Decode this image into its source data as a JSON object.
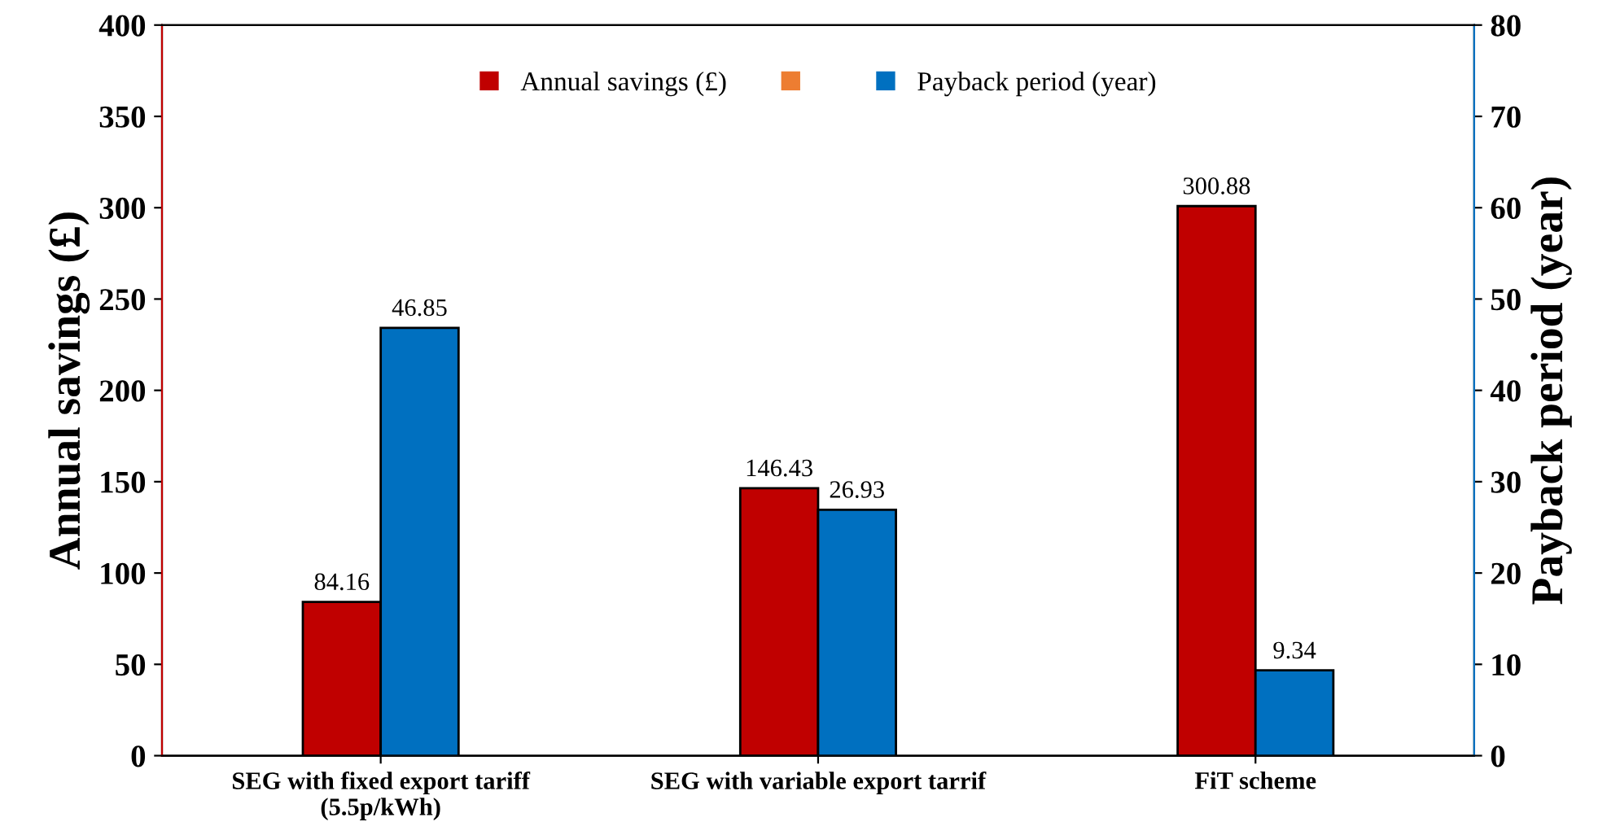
{
  "chart_data": {
    "type": "bar",
    "categories": [
      "SEG with fixed export tariff\n(5.5p/kWh)",
      "SEG with variable export tarrif",
      "FiT scheme"
    ],
    "ylabel": "Annual savings (£)",
    "y2label": "Payback period (year)",
    "ylim": [
      0,
      400
    ],
    "yticks": [
      0,
      50,
      100,
      150,
      200,
      250,
      300,
      350,
      400
    ],
    "y2lim": [
      0,
      80
    ],
    "y2ticks": [
      0,
      10,
      20,
      30,
      40,
      50,
      60,
      70,
      80
    ],
    "data_labels": true,
    "legend": "top",
    "grid": false,
    "series": [
      {
        "name": "Annual savings (£)",
        "color": "#c00000",
        "values": [
          84.16,
          146.43,
          300.88
        ]
      },
      {
        "color": "#ed7d31",
        "axis": "y2",
        "values": [
          null,
          null,
          null
        ]
      },
      {
        "name": "Payback period (year)",
        "color": "#0070c0",
        "axis": "y2",
        "values": [
          46.85,
          26.93,
          9.34
        ]
      }
    ]
  }
}
